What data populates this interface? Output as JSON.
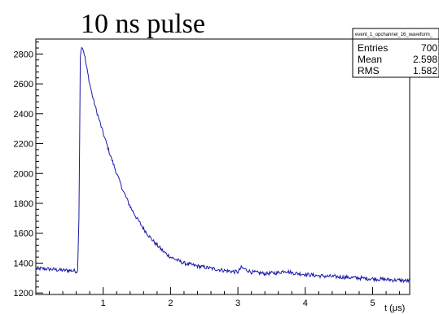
{
  "chart_data": {
    "type": "line",
    "title": "10 ns pulse",
    "xlabel": "t (μs)",
    "ylabel": "",
    "xlim": [
      0,
      5.55
    ],
    "ylim": [
      1190,
      2900
    ],
    "xticks": [
      1,
      2,
      3,
      4,
      5
    ],
    "xtick_labels": [
      "1",
      "2",
      "3",
      "4",
      "5"
    ],
    "yticks": [
      1200,
      1400,
      1600,
      1800,
      2000,
      2200,
      2400,
      2600,
      2800
    ],
    "ytick_labels": [
      "1200",
      "1400",
      "1600",
      "1800",
      "2000",
      "2200",
      "2400",
      "2600",
      "2800"
    ],
    "grid": false,
    "series": [
      {
        "color": "#1a1aa6",
        "x": [
          0.0,
          0.2,
          0.4,
          0.55,
          0.62,
          0.64,
          0.66,
          0.68,
          0.7,
          0.72,
          0.75,
          0.8,
          0.85,
          0.9,
          1.0,
          1.1,
          1.2,
          1.3,
          1.4,
          1.5,
          1.6,
          1.7,
          1.8,
          1.9,
          2.0,
          2.2,
          2.4,
          2.6,
          2.8,
          3.0,
          3.05,
          3.1,
          3.2,
          3.4,
          3.6,
          3.7,
          3.8,
          4.0,
          4.2,
          4.4,
          4.6,
          4.8,
          5.0,
          5.2,
          5.4,
          5.55
        ],
        "y": [
          1365,
          1360,
          1352,
          1350,
          1345,
          1700,
          2780,
          2855,
          2835,
          2800,
          2720,
          2600,
          2500,
          2420,
          2270,
          2130,
          2000,
          1880,
          1780,
          1700,
          1630,
          1570,
          1520,
          1475,
          1440,
          1400,
          1380,
          1365,
          1350,
          1340,
          1370,
          1360,
          1340,
          1330,
          1335,
          1350,
          1335,
          1325,
          1315,
          1310,
          1305,
          1300,
          1295,
          1290,
          1285,
          1280
        ]
      }
    ]
  },
  "stats_box": {
    "name": "event_1_opchannel_16_waveform_",
    "entries_label": "Entries",
    "entries_value": "700",
    "mean_label": "Mean",
    "mean_value": "2.598",
    "rms_label": "RMS",
    "rms_value": "1.582"
  }
}
